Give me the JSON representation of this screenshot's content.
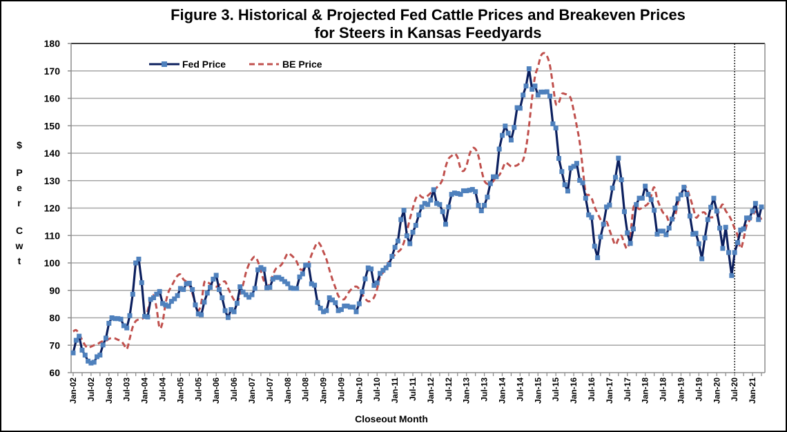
{
  "chart_data": {
    "type": "line",
    "title": "Figure 3.  Historical & Projected Fed Cattle Prices and Breakeven Prices",
    "title_line2": "for Steers in Kansas Feedyards",
    "xlabel": "Closeout Month",
    "ylabel": "$ Per Cwt",
    "ylim": [
      60,
      180
    ],
    "y_ticks": [
      "60",
      "70",
      "80",
      "90",
      "100",
      "110",
      "120",
      "130",
      "140",
      "150",
      "160",
      "170",
      "180"
    ],
    "x_start": "Jan-02",
    "x_interval": "monthly",
    "x_tick_labels": [
      "Jan-02",
      "Jul-02",
      "Jan-03",
      "Jul-03",
      "Jan-04",
      "Jul-04",
      "Jan-05",
      "Jul-05",
      "Jan-06",
      "Jul-06",
      "Jan-07",
      "Jul-07",
      "Jan-08",
      "Jul-08",
      "Jan-09",
      "Jul-09",
      "Jan-10",
      "Jul-10",
      "Jan-11",
      "Jul-11",
      "Jan-12",
      "Jul-12",
      "Jan-13",
      "Jul-13",
      "Jan-14",
      "Jul-14",
      "Jan-15",
      "Jul-15",
      "Jan-16",
      "Jul-16",
      "Jan-17",
      "Jul-17",
      "Jan-18",
      "Jul-18",
      "Jan-19",
      "Jul-19",
      "Jan-20",
      "Jul-20",
      "Jan-21"
    ],
    "projection_start": "Jul-20",
    "grid": true,
    "legend_position": "top-left",
    "series": [
      {
        "name": "Fed Price",
        "color": "#0b1f5e",
        "marker_color": "#4f81bd",
        "style": "solid-with-square-markers",
        "values": [
          67.2,
          71.8,
          73.3,
          68.2,
          66.4,
          64.2,
          63.5,
          63.8,
          65.8,
          66.4,
          70.1,
          72.6,
          78,
          80,
          79.7,
          79.7,
          79.5,
          77.1,
          76.3,
          80.8,
          88.6,
          100,
          101.4,
          92.8,
          80.5,
          80.3,
          86.7,
          87.3,
          88.6,
          89.6,
          85.2,
          84.7,
          84.2,
          86,
          86.9,
          88.1,
          90.7,
          90.3,
          92.4,
          92.6,
          90.3,
          84.7,
          81.4,
          81.1,
          85.7,
          89,
          91.1,
          94.1,
          95.5,
          90.3,
          87.3,
          82.6,
          80.1,
          83,
          82.2,
          85.3,
          91.3,
          89.4,
          88.4,
          87.5,
          88.4,
          90.7,
          97.5,
          98.3,
          97.7,
          90.9,
          91.1,
          94.1,
          94.7,
          94.7,
          94.1,
          93.2,
          92.4,
          90.9,
          90.7,
          90.7,
          94.9,
          96,
          99.2,
          99.2,
          92.4,
          91.9,
          85.6,
          83.5,
          82.2,
          82.6,
          87.3,
          86.5,
          85.5,
          82.6,
          83,
          84.3,
          84.3,
          83.9,
          83.9,
          82.2,
          85.1,
          89.5,
          94.2,
          98.2,
          97.8,
          91.8,
          92.7,
          96.2,
          97.3,
          98.2,
          99.4,
          102.4,
          105.7,
          108,
          115.8,
          119.2,
          109.9,
          107,
          111.2,
          113.7,
          117.5,
          120.4,
          121.7,
          121.3,
          122.9,
          126.7,
          121.7,
          121.3,
          118.7,
          114.1,
          120.4,
          125,
          125.5,
          125.3,
          125,
          126.3,
          126.3,
          126.5,
          126.8,
          126,
          121,
          119,
          121,
          124,
          128.9,
          131.4,
          131.4,
          141.5,
          146.5,
          149.9,
          147.3,
          144.8,
          149.4,
          156.6,
          156.4,
          161.2,
          164.5,
          170.8,
          163.3,
          164.5,
          161.2,
          162.3,
          162.3,
          162.4,
          160.8,
          150.7,
          149.2,
          138.1,
          133.3,
          128.5,
          126.2,
          134.6,
          135.2,
          136.3,
          130.1,
          129.2,
          123.6,
          117.5,
          116.6,
          106.1,
          101.9,
          109.5,
          114.1,
          120.4,
          121.1,
          127.3,
          131.2,
          138.2,
          130.3,
          118.7,
          111,
          107.1,
          112.4,
          121.3,
          123.6,
          123.6,
          128,
          125,
          123.1,
          119.2,
          110.5,
          111.6,
          111.6,
          110.3,
          112.7,
          116,
          120,
          123.4,
          124.8,
          127.6,
          125,
          117.1,
          110.5,
          110.8,
          107,
          101.5,
          109.1,
          115.8,
          120.3,
          123.6,
          118.9,
          112.7,
          105.3,
          113,
          103.8,
          95.4,
          103.8,
          107.4,
          112,
          112.4,
          116.4,
          116.4,
          118.9,
          121.7,
          115.8,
          120.4
        ]
      },
      {
        "name": "BE Price",
        "color": "#c0504d",
        "style": "dashed",
        "values": [
          75,
          75.5,
          74,
          72,
          70,
          69,
          69.5,
          70,
          70.3,
          71,
          71.5,
          71.6,
          72.3,
          72.6,
          72.5,
          72,
          71.6,
          70.3,
          68.6,
          72.5,
          76.7,
          78.8,
          79.4,
          79.6,
          80.3,
          82.6,
          86.9,
          88.1,
          83.5,
          76.3,
          78.4,
          85.2,
          89.4,
          91.5,
          93.6,
          95.3,
          95.8,
          94,
          93.2,
          92,
          89,
          85.2,
          82.6,
          85.5,
          92.8,
          93,
          92.3,
          91.5,
          91.3,
          92,
          92.8,
          93.2,
          90.8,
          88.5,
          86.5,
          85.5,
          88.5,
          92,
          96.5,
          99.5,
          101.3,
          102.3,
          100.5,
          97,
          93.5,
          91.5,
          92.5,
          95.5,
          97.8,
          98.5,
          99.5,
          101.5,
          103.5,
          103,
          102,
          100.5,
          98,
          97.5,
          99,
          100,
          103,
          105.5,
          107.5,
          106.5,
          104,
          101.3,
          97.5,
          94,
          91,
          88,
          87,
          86.8,
          88.5,
          90,
          91,
          91.4,
          90.5,
          88.5,
          87,
          86,
          86.3,
          87.5,
          90.5,
          95,
          96.5,
          98.3,
          100.5,
          101.8,
          103,
          104,
          105,
          107.5,
          111.5,
          116,
          120,
          123.5,
          124.8,
          124,
          123.8,
          124.5,
          125.5,
          126.2,
          127.5,
          128.5,
          130.5,
          135,
          138,
          139,
          139.8,
          138.5,
          134.5,
          133.5,
          135.5,
          139.5,
          141.8,
          141.5,
          139,
          134,
          130,
          128.8,
          129,
          129.8,
          131.5,
          132,
          134,
          136.5,
          136,
          135.2,
          135.3,
          135.6,
          136.5,
          137.5,
          142,
          150,
          160,
          168,
          171.5,
          175.5,
          176.5,
          175.5,
          172,
          165,
          158,
          158.5,
          161.6,
          161.6,
          161.2,
          160,
          155.5,
          150,
          144,
          134.7,
          125.5,
          124.8,
          123.6,
          120.4,
          118,
          115.8,
          113.3,
          115,
          112,
          109,
          106.6,
          108.7,
          109.9,
          107,
          105.3,
          110,
          120,
          120.5,
          119.6,
          120.2,
          120.8,
          121.7,
          124.5,
          127.6,
          123.4,
          120.5,
          118.3,
          117.5,
          115,
          115.5,
          117,
          122.1,
          125,
          128,
          127,
          124,
          120.4,
          116.6,
          117.5,
          118.3,
          118.3,
          116.5,
          116.6,
          116.7,
          117.1,
          119.5,
          121.3,
          119,
          117.5,
          115.4,
          112.5,
          110,
          105.3,
          108.7,
          113.7,
          115.5,
          117.1,
          118.7,
          117.5,
          115.8
        ]
      }
    ]
  }
}
